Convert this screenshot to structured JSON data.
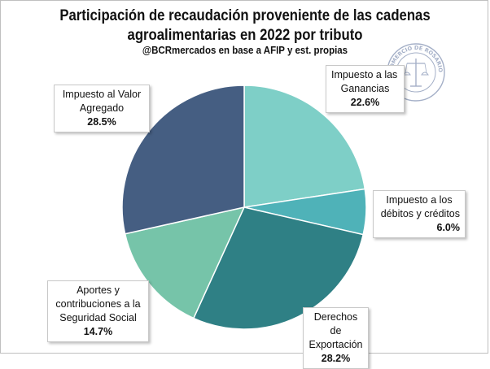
{
  "chart_data": {
    "type": "pie",
    "title_line1": "Participación de recaudación proveniente de las cadenas",
    "title_line2": "agroalimentarias en 2022 por tributo",
    "subtitle": "@BCRmercados en base a AFIP y est. propias",
    "slices": [
      {
        "label_lines": [
          "Impuesto a las",
          "Ganancias"
        ],
        "value": 22.6,
        "display": "22.6%",
        "color": "#7ecfc7"
      },
      {
        "label_lines": [
          "Impuesto a los",
          "débitos y créditos"
        ],
        "value": 6.0,
        "display": "6.0%",
        "color": "#4fb2b8"
      },
      {
        "label_lines": [
          "Derechos de",
          "Exportación"
        ],
        "value": 28.2,
        "display": "28.2%",
        "color": "#2f8085"
      },
      {
        "label_lines": [
          "Aportes y",
          "contribuciones a la",
          "Seguridad Social"
        ],
        "value": 14.7,
        "display": "14.7%",
        "color": "#76c4a9"
      },
      {
        "label_lines": [
          "Impuesto al Valor",
          "Agregado"
        ],
        "value": 28.5,
        "display": "28.5%",
        "color": "#455e82"
      }
    ]
  },
  "logo": {
    "text": "COMERCIO DE ROSARIO"
  }
}
